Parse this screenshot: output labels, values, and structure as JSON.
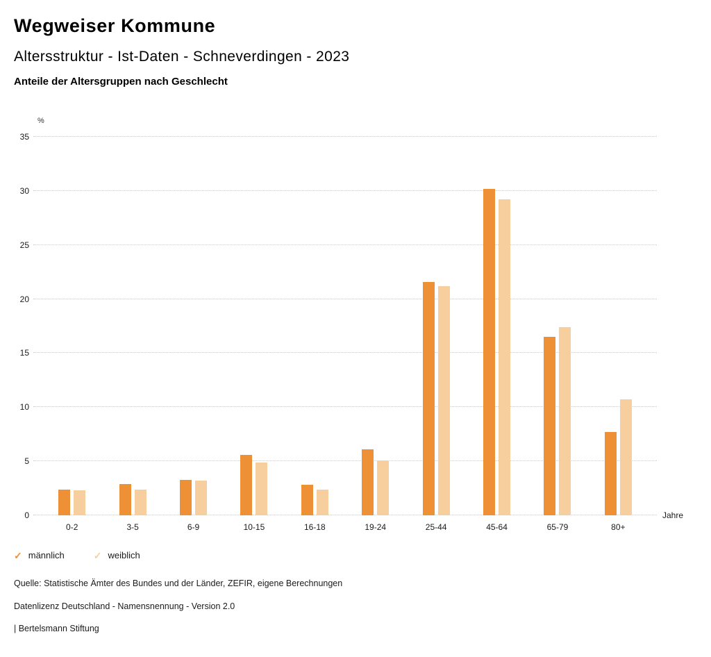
{
  "header": {
    "title": "Wegweiser Kommune",
    "subtitle": "Altersstruktur - Ist-Daten - Schneverdingen - 2023",
    "heading": "Anteile der Altersgruppen nach Geschlecht"
  },
  "chart_data": {
    "type": "bar",
    "title": "Anteile der Altersgruppen nach Geschlecht",
    "categories": [
      "0-2",
      "3-5",
      "6-9",
      "10-15",
      "16-18",
      "19-24",
      "25-44",
      "45-64",
      "65-79",
      "80+"
    ],
    "series": [
      {
        "name": "männlich",
        "color": "#ED9036",
        "values": [
          2.4,
          2.9,
          3.3,
          5.6,
          2.8,
          6.1,
          21.6,
          30.2,
          16.5,
          7.7
        ]
      },
      {
        "name": "weiblich",
        "color": "#F7CF9E",
        "values": [
          2.3,
          2.4,
          3.2,
          4.9,
          2.4,
          5.1,
          21.2,
          29.2,
          17.4,
          10.7
        ]
      }
    ],
    "xlabel": "Jahre",
    "ylabel": "%",
    "ylim": [
      0,
      35
    ],
    "yticks": [
      0,
      5,
      10,
      15,
      20,
      25,
      30,
      35
    ],
    "grid": true,
    "legend_position": "bottom-left"
  },
  "footer": {
    "source": "Quelle: Statistische Ämter des Bundes und der Länder, ZEFIR, eigene Berechnungen",
    "license": "Datenlizenz Deutschland - Namensnennung - Version 2.0",
    "attribution": "| Bertelsmann Stiftung"
  }
}
